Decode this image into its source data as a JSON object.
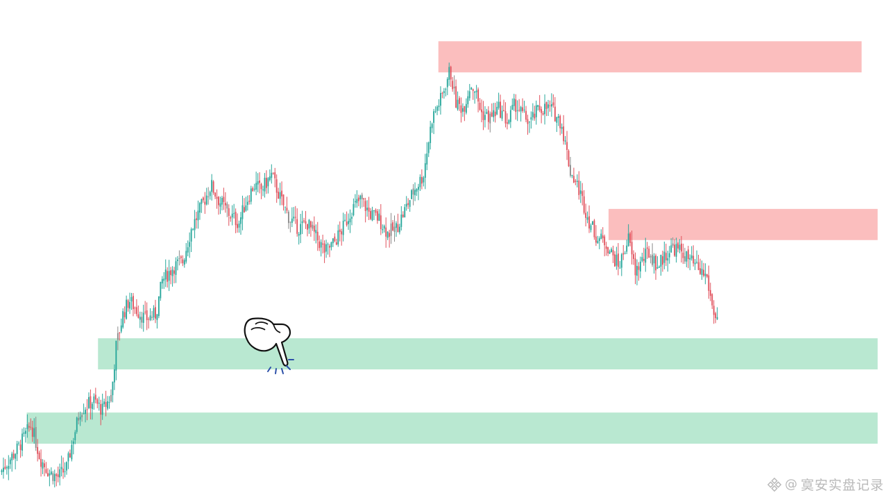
{
  "watermark": {
    "at_symbol": "@",
    "handle": "寞安实盘记录",
    "logo_icon": "binance-diamond-logo"
  },
  "colors": {
    "background": "#ffffff",
    "bullish_candle": "#26a69a",
    "bearish_candle": "#e0505b",
    "neutral_candle": "#8a8a8a",
    "supply_zone": "#fbb8b8",
    "demand_zone": "#b3e6cd",
    "pointer_accent": "#2b4fa8"
  },
  "chart_data": {
    "type": "candlestick",
    "title": "",
    "xlabel": "",
    "ylabel": "",
    "axes_visible": false,
    "grid": false,
    "legend": "none",
    "ylim": [
      0,
      100
    ],
    "xlim": [
      0,
      100
    ],
    "price_path": [
      [
        0,
        4
      ],
      [
        2,
        9
      ],
      [
        3.5,
        14
      ],
      [
        4.5,
        7
      ],
      [
        5.5,
        4
      ],
      [
        6.5,
        3
      ],
      [
        7.5,
        5
      ],
      [
        8.2,
        11
      ],
      [
        9,
        17
      ],
      [
        10.5,
        19
      ],
      [
        11.5,
        17
      ],
      [
        12.5,
        20
      ],
      [
        13,
        30
      ],
      [
        13.8,
        37
      ],
      [
        14.5,
        40
      ],
      [
        15.3,
        38
      ],
      [
        16.3,
        36
      ],
      [
        17.5,
        37
      ],
      [
        18.2,
        44
      ],
      [
        19.5,
        47
      ],
      [
        20.5,
        48
      ],
      [
        21.5,
        55
      ],
      [
        22.5,
        59
      ],
      [
        23.7,
        64
      ],
      [
        24.5,
        61
      ],
      [
        25.7,
        58
      ],
      [
        26.8,
        56
      ],
      [
        27.5,
        60
      ],
      [
        28.5,
        64
      ],
      [
        29.3,
        63
      ],
      [
        30.5,
        66
      ],
      [
        31.5,
        61
      ],
      [
        32.5,
        57
      ],
      [
        33.5,
        55
      ],
      [
        34.5,
        56
      ],
      [
        35.5,
        53
      ],
      [
        36.5,
        50
      ],
      [
        37.5,
        52
      ],
      [
        38.5,
        55
      ],
      [
        39.5,
        59
      ],
      [
        40.5,
        61
      ],
      [
        41.5,
        58
      ],
      [
        42.5,
        57
      ],
      [
        43.5,
        54
      ],
      [
        44.5,
        55
      ],
      [
        45.5,
        59
      ],
      [
        46.5,
        63
      ],
      [
        47.5,
        66
      ],
      [
        48.5,
        78
      ],
      [
        49.5,
        82
      ],
      [
        50.5,
        88
      ],
      [
        51.2,
        81
      ],
      [
        52,
        80
      ],
      [
        52.8,
        85
      ],
      [
        53.3,
        84
      ],
      [
        54,
        79
      ],
      [
        55,
        78
      ],
      [
        56,
        80
      ],
      [
        57,
        77
      ],
      [
        57.8,
        81
      ],
      [
        58.5,
        79
      ],
      [
        59.5,
        77
      ],
      [
        60.5,
        80
      ],
      [
        61.8,
        80
      ],
      [
        63,
        77
      ],
      [
        64,
        67
      ],
      [
        65,
        63
      ],
      [
        66,
        57
      ],
      [
        67,
        53
      ],
      [
        68,
        52
      ],
      [
        68.8,
        49
      ],
      [
        69.5,
        47
      ],
      [
        70,
        50
      ],
      [
        70.5,
        53
      ],
      [
        71.3,
        46
      ],
      [
        72,
        48
      ],
      [
        72.8,
        50
      ],
      [
        73.8,
        47
      ],
      [
        74.5,
        49
      ],
      [
        75.5,
        51
      ],
      [
        76.5,
        50
      ],
      [
        77.5,
        48
      ],
      [
        78.5,
        46
      ],
      [
        79.3,
        45
      ],
      [
        80,
        38
      ],
      [
        80.5,
        36
      ]
    ],
    "zones": [
      {
        "kind": "supply",
        "x0": 49.2,
        "x1": 96.7,
        "y0": 87.5,
        "y1": 94.0
      },
      {
        "kind": "supply",
        "x0": 68.3,
        "x1": 98.5,
        "y0": 52.5,
        "y1": 59.0
      },
      {
        "kind": "demand",
        "x0": 11.0,
        "x1": 98.5,
        "y0": 25.5,
        "y1": 32.0
      },
      {
        "kind": "demand",
        "x0": 3.0,
        "x1": 98.5,
        "y0": 10.0,
        "y1": 16.5
      }
    ],
    "annotations": [
      {
        "kind": "pointing-hand-icon",
        "target_zone": 2
      }
    ]
  }
}
